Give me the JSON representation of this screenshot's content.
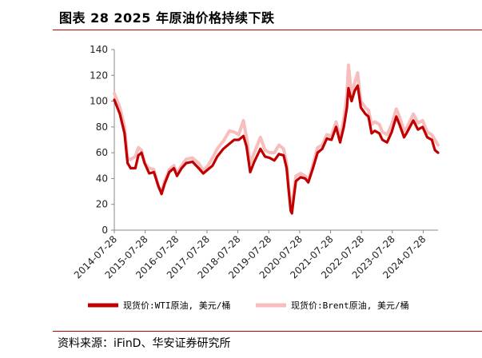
{
  "title": "图表 28 2025 年原油价格持续下跌",
  "source": "资料来源：iFinD、华安证券研究所",
  "colors": {
    "wti": "#c00000",
    "brent": "#f8bdbd",
    "rule": "#c00000",
    "axis": "#888888"
  },
  "chart_data": {
    "type": "line",
    "title": "2025 年原油价格持续下跌",
    "xlabel": "",
    "ylabel": "",
    "ylim": [
      0,
      140
    ],
    "yticks": [
      0,
      20,
      40,
      60,
      80,
      100,
      120,
      140
    ],
    "xlim": [
      2014.57,
      2025.05
    ],
    "xticks": [
      {
        "label": "2014-07-28",
        "x": 2014.57
      },
      {
        "label": "2015-07-28",
        "x": 2015.57
      },
      {
        "label": "2016-07-28",
        "x": 2016.57
      },
      {
        "label": "2017-07-28",
        "x": 2017.57
      },
      {
        "label": "2018-07-28",
        "x": 2018.57
      },
      {
        "label": "2019-07-28",
        "x": 2019.57
      },
      {
        "label": "2020-07-28",
        "x": 2020.57
      },
      {
        "label": "2021-07-28",
        "x": 2021.57
      },
      {
        "label": "2022-07-28",
        "x": 2022.57
      },
      {
        "label": "2023-07-28",
        "x": 2023.57
      },
      {
        "label": "2024-07-28",
        "x": 2024.57
      }
    ],
    "series": [
      {
        "name": "现货价:WTI原油, 美元/桶",
        "color": "#c00000",
        "points": [
          [
            2014.57,
            101
          ],
          [
            2014.75,
            90
          ],
          [
            2014.9,
            75
          ],
          [
            2015.0,
            52
          ],
          [
            2015.1,
            48
          ],
          [
            2015.25,
            48
          ],
          [
            2015.35,
            58
          ],
          [
            2015.45,
            60
          ],
          [
            2015.55,
            52
          ],
          [
            2015.7,
            44
          ],
          [
            2015.85,
            45
          ],
          [
            2016.0,
            34
          ],
          [
            2016.1,
            28
          ],
          [
            2016.2,
            36
          ],
          [
            2016.35,
            45
          ],
          [
            2016.5,
            48
          ],
          [
            2016.6,
            42
          ],
          [
            2016.75,
            48
          ],
          [
            2016.9,
            52
          ],
          [
            2017.1,
            53
          ],
          [
            2017.3,
            48
          ],
          [
            2017.45,
            44
          ],
          [
            2017.6,
            47
          ],
          [
            2017.75,
            50
          ],
          [
            2017.9,
            57
          ],
          [
            2018.1,
            63
          ],
          [
            2018.3,
            67
          ],
          [
            2018.45,
            70
          ],
          [
            2018.6,
            70
          ],
          [
            2018.75,
            73
          ],
          [
            2018.85,
            65
          ],
          [
            2018.97,
            45
          ],
          [
            2019.1,
            53
          ],
          [
            2019.3,
            63
          ],
          [
            2019.45,
            57
          ],
          [
            2019.6,
            56
          ],
          [
            2019.75,
            54
          ],
          [
            2019.9,
            59
          ],
          [
            2020.05,
            58
          ],
          [
            2020.15,
            48
          ],
          [
            2020.22,
            30
          ],
          [
            2020.28,
            15
          ],
          [
            2020.32,
            13
          ],
          [
            2020.38,
            25
          ],
          [
            2020.45,
            38
          ],
          [
            2020.6,
            41
          ],
          [
            2020.75,
            40
          ],
          [
            2020.85,
            37
          ],
          [
            2021.0,
            48
          ],
          [
            2021.15,
            60
          ],
          [
            2021.3,
            63
          ],
          [
            2021.45,
            71
          ],
          [
            2021.6,
            70
          ],
          [
            2021.75,
            80
          ],
          [
            2021.88,
            68
          ],
          [
            2022.0,
            80
          ],
          [
            2022.1,
            95
          ],
          [
            2022.15,
            110
          ],
          [
            2022.25,
            100
          ],
          [
            2022.35,
            108
          ],
          [
            2022.45,
            112
          ],
          [
            2022.55,
            95
          ],
          [
            2022.7,
            90
          ],
          [
            2022.8,
            88
          ],
          [
            2022.9,
            75
          ],
          [
            2023.0,
            77
          ],
          [
            2023.15,
            75
          ],
          [
            2023.25,
            70
          ],
          [
            2023.4,
            68
          ],
          [
            2023.55,
            76
          ],
          [
            2023.7,
            88
          ],
          [
            2023.8,
            82
          ],
          [
            2023.95,
            72
          ],
          [
            2024.05,
            76
          ],
          [
            2024.25,
            85
          ],
          [
            2024.4,
            78
          ],
          [
            2024.55,
            80
          ],
          [
            2024.7,
            72
          ],
          [
            2024.85,
            70
          ],
          [
            2024.95,
            62
          ],
          [
            2025.05,
            60
          ]
        ]
      },
      {
        "name": "现货价:Brent原油, 美元/桶",
        "color": "#f8bdbd",
        "points": [
          [
            2014.57,
            106
          ],
          [
            2014.75,
            95
          ],
          [
            2014.9,
            80
          ],
          [
            2015.0,
            55
          ],
          [
            2015.1,
            55
          ],
          [
            2015.25,
            57
          ],
          [
            2015.35,
            64
          ],
          [
            2015.45,
            62
          ],
          [
            2015.55,
            52
          ],
          [
            2015.7,
            48
          ],
          [
            2015.85,
            47
          ],
          [
            2016.0,
            33
          ],
          [
            2016.1,
            30
          ],
          [
            2016.2,
            38
          ],
          [
            2016.35,
            47
          ],
          [
            2016.5,
            50
          ],
          [
            2016.6,
            44
          ],
          [
            2016.75,
            50
          ],
          [
            2016.9,
            55
          ],
          [
            2017.1,
            56
          ],
          [
            2017.3,
            52
          ],
          [
            2017.45,
            46
          ],
          [
            2017.6,
            50
          ],
          [
            2017.75,
            56
          ],
          [
            2017.9,
            63
          ],
          [
            2018.1,
            69
          ],
          [
            2018.3,
            77
          ],
          [
            2018.45,
            76
          ],
          [
            2018.6,
            74
          ],
          [
            2018.75,
            85
          ],
          [
            2018.85,
            72
          ],
          [
            2018.97,
            52
          ],
          [
            2019.1,
            60
          ],
          [
            2019.3,
            72
          ],
          [
            2019.45,
            62
          ],
          [
            2019.6,
            60
          ],
          [
            2019.75,
            60
          ],
          [
            2019.9,
            66
          ],
          [
            2020.05,
            63
          ],
          [
            2020.15,
            52
          ],
          [
            2020.22,
            32
          ],
          [
            2020.28,
            20
          ],
          [
            2020.32,
            18
          ],
          [
            2020.38,
            30
          ],
          [
            2020.45,
            42
          ],
          [
            2020.6,
            44
          ],
          [
            2020.75,
            42
          ],
          [
            2020.85,
            38
          ],
          [
            2021.0,
            51
          ],
          [
            2021.15,
            64
          ],
          [
            2021.3,
            66
          ],
          [
            2021.45,
            74
          ],
          [
            2021.6,
            73
          ],
          [
            2021.75,
            84
          ],
          [
            2021.88,
            72
          ],
          [
            2022.0,
            86
          ],
          [
            2022.1,
            105
          ],
          [
            2022.15,
            128
          ],
          [
            2022.25,
            105
          ],
          [
            2022.35,
            114
          ],
          [
            2022.45,
            122
          ],
          [
            2022.55,
            100
          ],
          [
            2022.7,
            95
          ],
          [
            2022.8,
            93
          ],
          [
            2022.9,
            82
          ],
          [
            2023.0,
            84
          ],
          [
            2023.15,
            82
          ],
          [
            2023.25,
            76
          ],
          [
            2023.4,
            74
          ],
          [
            2023.55,
            82
          ],
          [
            2023.7,
            94
          ],
          [
            2023.8,
            88
          ],
          [
            2023.95,
            77
          ],
          [
            2024.05,
            80
          ],
          [
            2024.25,
            90
          ],
          [
            2024.4,
            83
          ],
          [
            2024.55,
            85
          ],
          [
            2024.7,
            76
          ],
          [
            2024.85,
            74
          ],
          [
            2024.95,
            70
          ],
          [
            2025.05,
            66
          ]
        ]
      }
    ],
    "legend": [
      {
        "label": "现货价:WTI原油, 美元/桶",
        "color": "#c00000"
      },
      {
        "label": "现货价:Brent原油, 美元/桶",
        "color": "#f8bdbd"
      }
    ],
    "legend_position": "bottom",
    "grid": false
  }
}
